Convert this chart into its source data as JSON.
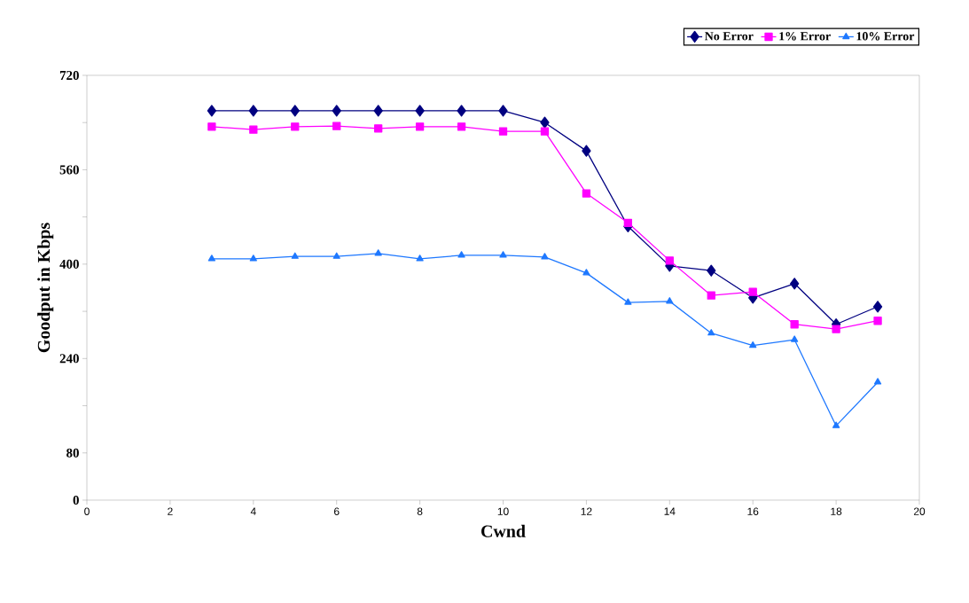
{
  "chart_data": {
    "type": "line",
    "xlabel": "Cwnd",
    "ylabel": "Goodput in Kbps",
    "x": [
      3,
      4,
      5,
      6,
      7,
      8,
      9,
      10,
      11,
      12,
      13,
      14,
      15,
      16,
      17,
      18,
      19
    ],
    "series": [
      {
        "name": "No Error",
        "color": "#000080",
        "marker": "diamond",
        "values": [
          660,
          660,
          660,
          660,
          660,
          660,
          660,
          660,
          640,
          592,
          464,
          397,
          389,
          343,
          367,
          298,
          328
        ]
      },
      {
        "name": "1% Error",
        "color": "#ff00ff",
        "marker": "square",
        "values": [
          633,
          628,
          633,
          634,
          630,
          633,
          633,
          625,
          625,
          520,
          470,
          406,
          347,
          353,
          298,
          290,
          304
        ]
      },
      {
        "name": "10% Error",
        "color": "#1e78ff",
        "marker": "triangle",
        "values": [
          409,
          409,
          413,
          413,
          418,
          409,
          415,
          415,
          412,
          385,
          335,
          337,
          283,
          262,
          272,
          126,
          200
        ]
      }
    ],
    "xlim": [
      0,
      20
    ],
    "xticks": [
      0,
      2,
      4,
      6,
      8,
      10,
      12,
      14,
      16,
      18,
      20
    ],
    "ylim": [
      0,
      720
    ],
    "yticks": [
      0,
      80,
      {
        "value": 160,
        "label": null
      },
      240,
      {
        "value": 320,
        "label": null
      },
      400,
      {
        "value": 480,
        "label": null
      },
      560,
      {
        "value": 640,
        "label": null
      },
      720
    ],
    "legend": "top right",
    "grid": false,
    "line_style": "solid"
  }
}
